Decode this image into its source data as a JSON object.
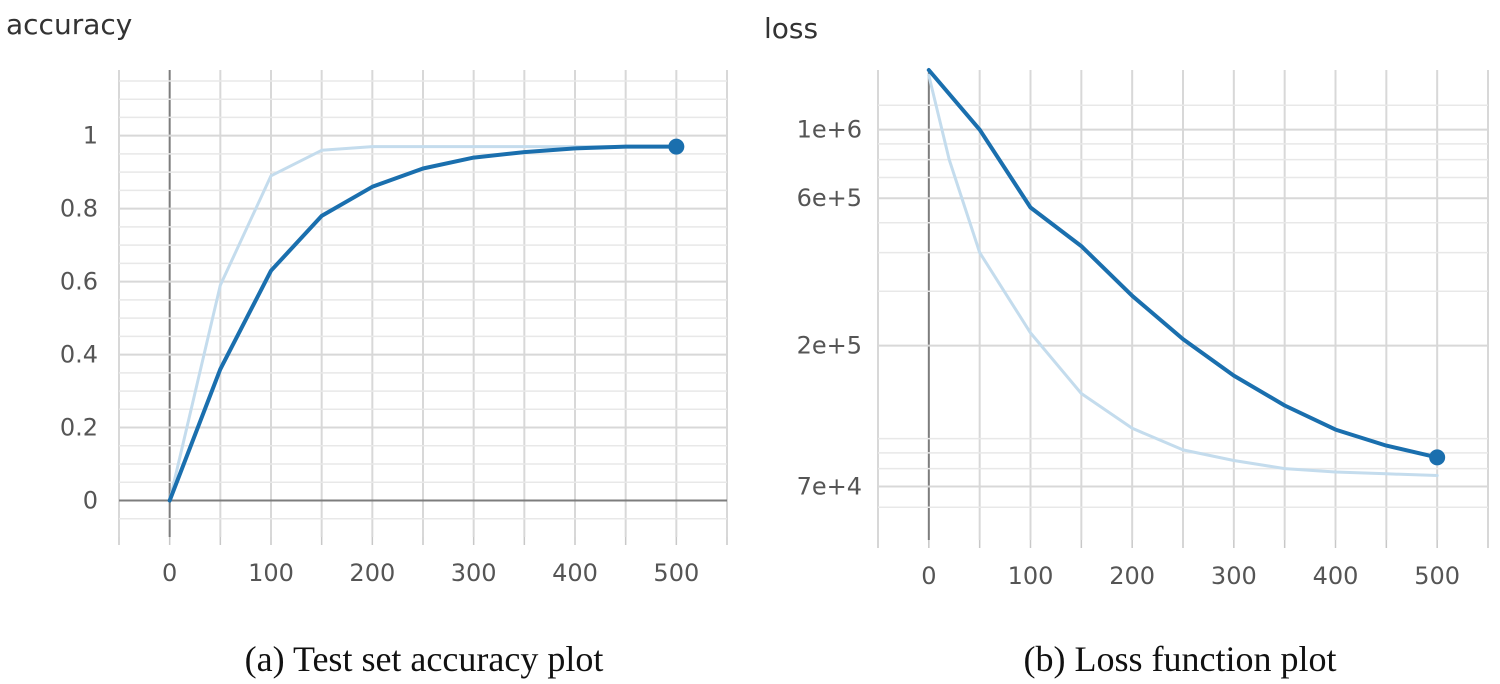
{
  "captions": [
    "(a) Test set accuracy plot",
    "(b) Loss function plot"
  ],
  "colors": {
    "smoothed": "#1a6fae",
    "raw": "#c4dced"
  },
  "chart_data": [
    {
      "type": "line",
      "title": "accuracy",
      "xlabel": "",
      "ylabel": "",
      "xlim": [
        -50,
        550
      ],
      "ylim": [
        -0.1,
        1.18
      ],
      "x_ticks": [
        0,
        100,
        200,
        300,
        400,
        500
      ],
      "x_tick_labels": [
        "0",
        "100",
        "200",
        "300",
        "400",
        "500"
      ],
      "y_ticks": [
        0,
        0.2,
        0.4,
        0.6,
        0.8,
        1
      ],
      "y_tick_labels": [
        "0",
        "0.2",
        "0.4",
        "0.6",
        "0.8",
        "1"
      ],
      "grid": true,
      "series": [
        {
          "role": "raw",
          "x": [
            0,
            50,
            100,
            150,
            200,
            250,
            300,
            350,
            400,
            450,
            500
          ],
          "y": [
            0,
            0.59,
            0.89,
            0.96,
            0.97,
            0.97,
            0.97,
            0.97,
            0.97,
            0.97,
            0.97
          ]
        },
        {
          "role": "smoothed",
          "x": [
            0,
            50,
            100,
            150,
            200,
            250,
            300,
            350,
            400,
            450,
            500
          ],
          "y": [
            0,
            0.36,
            0.63,
            0.78,
            0.86,
            0.91,
            0.94,
            0.955,
            0.965,
            0.97,
            0.97
          ],
          "end_marker": true
        }
      ]
    },
    {
      "type": "line",
      "title": "loss",
      "xlabel": "",
      "ylabel": "",
      "xlim": [
        -50,
        550
      ],
      "ylim": [
        47000,
        1560000
      ],
      "scale_y": "log",
      "x_ticks": [
        0,
        100,
        200,
        300,
        400,
        500
      ],
      "x_tick_labels": [
        "0",
        "100",
        "200",
        "300",
        "400",
        "500"
      ],
      "y_ticks": [
        70000,
        200000,
        600000,
        1000000
      ],
      "y_tick_labels": [
        "7e+4",
        "2e+5",
        "6e+5",
        "1e+6"
      ],
      "grid": true,
      "series": [
        {
          "role": "raw",
          "x": [
            0,
            20,
            50,
            100,
            150,
            200,
            250,
            300,
            350,
            400,
            450,
            500
          ],
          "y": [
            1500000,
            800000,
            400000,
            220000,
            140000,
            108000,
            92000,
            85000,
            80000,
            78000,
            77000,
            76000
          ]
        },
        {
          "role": "smoothed",
          "x": [
            0,
            50,
            100,
            150,
            200,
            250,
            300,
            350,
            400,
            450,
            500
          ],
          "y": [
            1600000,
            1000000,
            560000,
            420000,
            290000,
            210000,
            160000,
            128000,
            107000,
            95000,
            87000
          ],
          "end_marker": true
        }
      ]
    }
  ]
}
